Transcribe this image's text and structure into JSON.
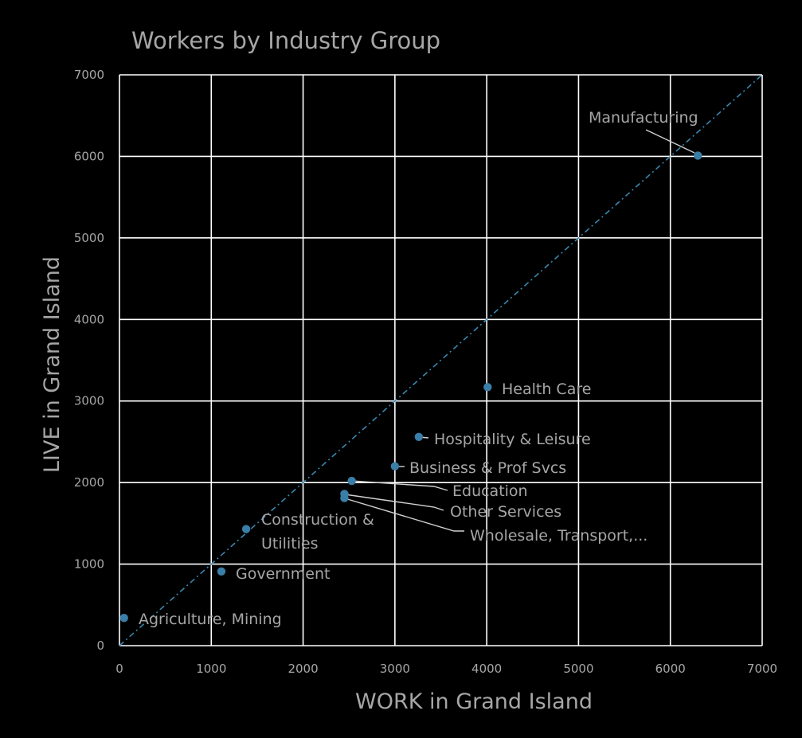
{
  "chart_data": {
    "type": "scatter",
    "title": "Workers by Industry Group",
    "xlabel": "WORK in Grand Island",
    "ylabel": "LIVE in Grand Island",
    "xlim": [
      0,
      7000
    ],
    "ylim": [
      0,
      7000
    ],
    "xticks": [
      "0",
      "1000",
      "2000",
      "3000",
      "4000",
      "5000",
      "6000",
      "7000"
    ],
    "yticks": [
      "0",
      "1000",
      "2000",
      "3000",
      "4000",
      "5000",
      "6000",
      "7000"
    ],
    "grid": true,
    "legend": "none",
    "reference_line": {
      "style": "dash-dot",
      "from": [
        0,
        0
      ],
      "to": [
        7000,
        7000
      ]
    },
    "colors": {
      "background": "#000000",
      "point": "#3a7ea8",
      "reference_line": "#3a86b0",
      "grid": "#ffffff",
      "text": "#a6a6a6"
    },
    "points": [
      {
        "label": "Agriculture, Mining",
        "x": 50,
        "y": 340
      },
      {
        "label": "Government",
        "x": 1110,
        "y": 910
      },
      {
        "label": "Construction & Utilities",
        "x": 1380,
        "y": 1430
      },
      {
        "label": "Education",
        "x": 2530,
        "y": 2020
      },
      {
        "label": "Other Services",
        "x": 2450,
        "y": 1860
      },
      {
        "label": "Wholesale, Transport,...",
        "x": 2450,
        "y": 1810
      },
      {
        "label": "Business & Prof Svcs",
        "x": 3000,
        "y": 2200
      },
      {
        "label": "Hospitality & Leisure",
        "x": 3260,
        "y": 2560
      },
      {
        "label": "Health Care",
        "x": 4010,
        "y": 3170
      },
      {
        "label": "Manufacturing",
        "x": 6300,
        "y": 6010
      }
    ]
  }
}
